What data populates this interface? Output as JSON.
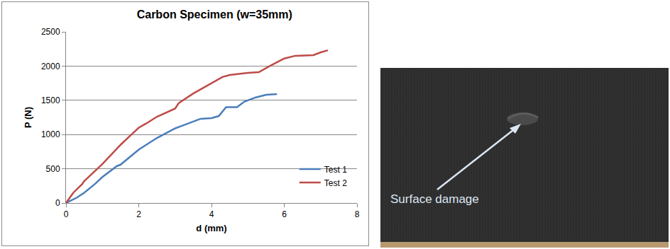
{
  "chart_data": {
    "type": "line",
    "title": "Carbon Specimen (w=35mm)",
    "x_label": "d (mm)",
    "y_label": "P (N)",
    "xlim": [
      0,
      8
    ],
    "xticks": [
      0,
      2,
      4,
      6,
      8
    ],
    "ylim": [
      0,
      2500
    ],
    "yticks": [
      0,
      500,
      1000,
      1500,
      2000,
      2500
    ],
    "grid": true,
    "legend": "lower right",
    "series": [
      {
        "name": "Test 1",
        "color": "#4a7ebb",
        "x": [
          0,
          0.3,
          0.5,
          0.8,
          1.0,
          1.2,
          1.4,
          1.5,
          1.7,
          2.0,
          2.5,
          3.0,
          3.2,
          3.5,
          3.7,
          4.0,
          4.2,
          4.4,
          4.7,
          4.9,
          5.2,
          5.5,
          5.8
        ],
        "values": [
          0,
          80,
          150,
          280,
          380,
          460,
          540,
          560,
          650,
          780,
          950,
          1090,
          1130,
          1190,
          1230,
          1240,
          1270,
          1400,
          1400,
          1480,
          1540,
          1580,
          1590
        ]
      },
      {
        "name": "Test 2",
        "color": "#be4b48",
        "x": [
          0,
          0.2,
          0.45,
          0.5,
          1.0,
          1.5,
          1.8,
          2.0,
          2.2,
          2.5,
          3.0,
          3.1,
          3.5,
          4.0,
          4.3,
          4.5,
          5.0,
          5.3,
          5.6,
          6.0,
          6.3,
          6.8,
          7.0,
          7.2
        ],
        "values": [
          0,
          150,
          280,
          320,
          570,
          850,
          1000,
          1100,
          1160,
          1260,
          1380,
          1460,
          1600,
          1750,
          1840,
          1870,
          1900,
          1910,
          2000,
          2110,
          2150,
          2160,
          2200,
          2230
        ]
      }
    ]
  },
  "image_panel": {
    "annotation": "Surface damage"
  }
}
